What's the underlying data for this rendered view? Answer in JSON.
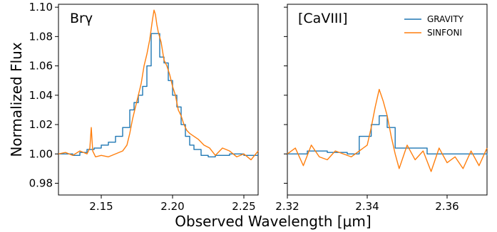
{
  "figure": {
    "ylabel": "Normalized Flux",
    "xlabel_html": "Observed Wavelength [μm]"
  },
  "chart_data": [
    {
      "type": "line",
      "panel_label": "Brγ",
      "xlim": [
        2.12,
        2.26
      ],
      "ylim": [
        0.972,
        1.102
      ],
      "x_ticks": [
        2.15,
        2.2,
        2.25
      ],
      "x_tick_labels": [
        "2.15",
        "2.20",
        "2.25"
      ],
      "y_ticks": [
        0.98,
        1.0,
        1.02,
        1.04,
        1.06,
        1.08,
        1.1
      ],
      "y_tick_labels": [
        "0.98",
        "1.00",
        "1.02",
        "1.04",
        "1.06",
        "1.08",
        "1.10"
      ],
      "series": [
        {
          "name": "GRAVITY",
          "color": "#1f77b4",
          "style": "steps",
          "x": [
            2.12,
            2.13,
            2.135,
            2.14,
            2.145,
            2.15,
            2.155,
            2.16,
            2.165,
            2.17,
            2.173,
            2.176,
            2.179,
            2.182,
            2.185,
            2.188,
            2.191,
            2.194,
            2.197,
            2.2,
            2.203,
            2.206,
            2.209,
            2.212,
            2.215,
            2.22,
            2.225,
            2.23,
            2.24,
            2.25,
            2.26
          ],
          "y": [
            1.0,
            0.999,
            1.001,
            1.003,
            1.004,
            1.006,
            1.008,
            1.012,
            1.018,
            1.03,
            1.035,
            1.04,
            1.046,
            1.06,
            1.082,
            1.082,
            1.066,
            1.062,
            1.05,
            1.04,
            1.032,
            1.02,
            1.012,
            1.006,
            1.003,
            0.999,
            0.998,
            0.999,
            1.0,
            0.999,
            0.999
          ]
        },
        {
          "name": "SINFONI",
          "color": "#ff7f0e",
          "style": "line",
          "x": [
            2.12,
            2.125,
            2.13,
            2.135,
            2.14,
            2.142,
            2.143,
            2.144,
            2.146,
            2.15,
            2.155,
            2.16,
            2.165,
            2.168,
            2.17,
            2.172,
            2.175,
            2.178,
            2.18,
            2.182,
            2.184,
            2.186,
            2.187,
            2.188,
            2.189,
            2.19,
            2.192,
            2.194,
            2.196,
            2.198,
            2.2,
            2.202,
            2.204,
            2.206,
            2.208,
            2.21,
            2.212,
            2.215,
            2.218,
            2.222,
            2.226,
            2.23,
            2.235,
            2.24,
            2.245,
            2.25,
            2.255,
            2.26
          ],
          "y": [
            1.0,
            1.001,
            0.999,
            1.002,
            1.0,
            1.004,
            1.018,
            1.002,
            0.998,
            0.999,
            0.998,
            1.0,
            1.002,
            1.006,
            1.014,
            1.024,
            1.036,
            1.048,
            1.06,
            1.068,
            1.078,
            1.092,
            1.098,
            1.095,
            1.088,
            1.083,
            1.076,
            1.064,
            1.06,
            1.054,
            1.046,
            1.04,
            1.03,
            1.026,
            1.02,
            1.016,
            1.014,
            1.012,
            1.01,
            1.006,
            1.004,
            0.999,
            1.004,
            1.002,
            0.998,
            1.0,
            0.996,
            1.002
          ]
        }
      ]
    },
    {
      "type": "line",
      "panel_label": "[CaVIII]",
      "xlim": [
        2.32,
        2.37
      ],
      "ylim": [
        0.972,
        1.102
      ],
      "x_ticks": [
        2.32,
        2.34,
        2.36
      ],
      "x_tick_labels": [
        "2.32",
        "2.34",
        "2.36"
      ],
      "y_ticks": [
        0.98,
        1.0,
        1.02,
        1.04,
        1.06,
        1.08,
        1.1
      ],
      "y_tick_labels": [],
      "legend_position": "top-right",
      "series": [
        {
          "name": "GRAVITY",
          "color": "#1f77b4",
          "style": "steps",
          "x": [
            2.32,
            2.325,
            2.33,
            2.335,
            2.338,
            2.341,
            2.343,
            2.345,
            2.347,
            2.35,
            2.355,
            2.36,
            2.365,
            2.37
          ],
          "y": [
            1.0,
            1.002,
            1.001,
            1.0,
            1.012,
            1.02,
            1.026,
            1.018,
            1.004,
            1.004,
            1.0,
            1.0,
            1.0,
            0.999
          ],
          "comment": ""
        },
        {
          "name": "SINFONI",
          "color": "#ff7f0e",
          "style": "line",
          "x": [
            2.32,
            2.322,
            2.324,
            2.326,
            2.328,
            2.33,
            2.332,
            2.334,
            2.336,
            2.338,
            2.34,
            2.341,
            2.342,
            2.343,
            2.344,
            2.345,
            2.346,
            2.347,
            2.348,
            2.35,
            2.352,
            2.354,
            2.356,
            2.358,
            2.36,
            2.362,
            2.364,
            2.366,
            2.368,
            2.37
          ],
          "y": [
            1.0,
            1.004,
            0.992,
            1.006,
            0.998,
            0.996,
            1.002,
            1.0,
            0.998,
            1.002,
            1.006,
            1.018,
            1.032,
            1.044,
            1.036,
            1.026,
            1.012,
            1.0,
            0.99,
            1.006,
            0.996,
            1.002,
            0.988,
            1.004,
            0.994,
            0.998,
            0.99,
            1.002,
            0.992,
            1.004
          ]
        }
      ]
    }
  ]
}
